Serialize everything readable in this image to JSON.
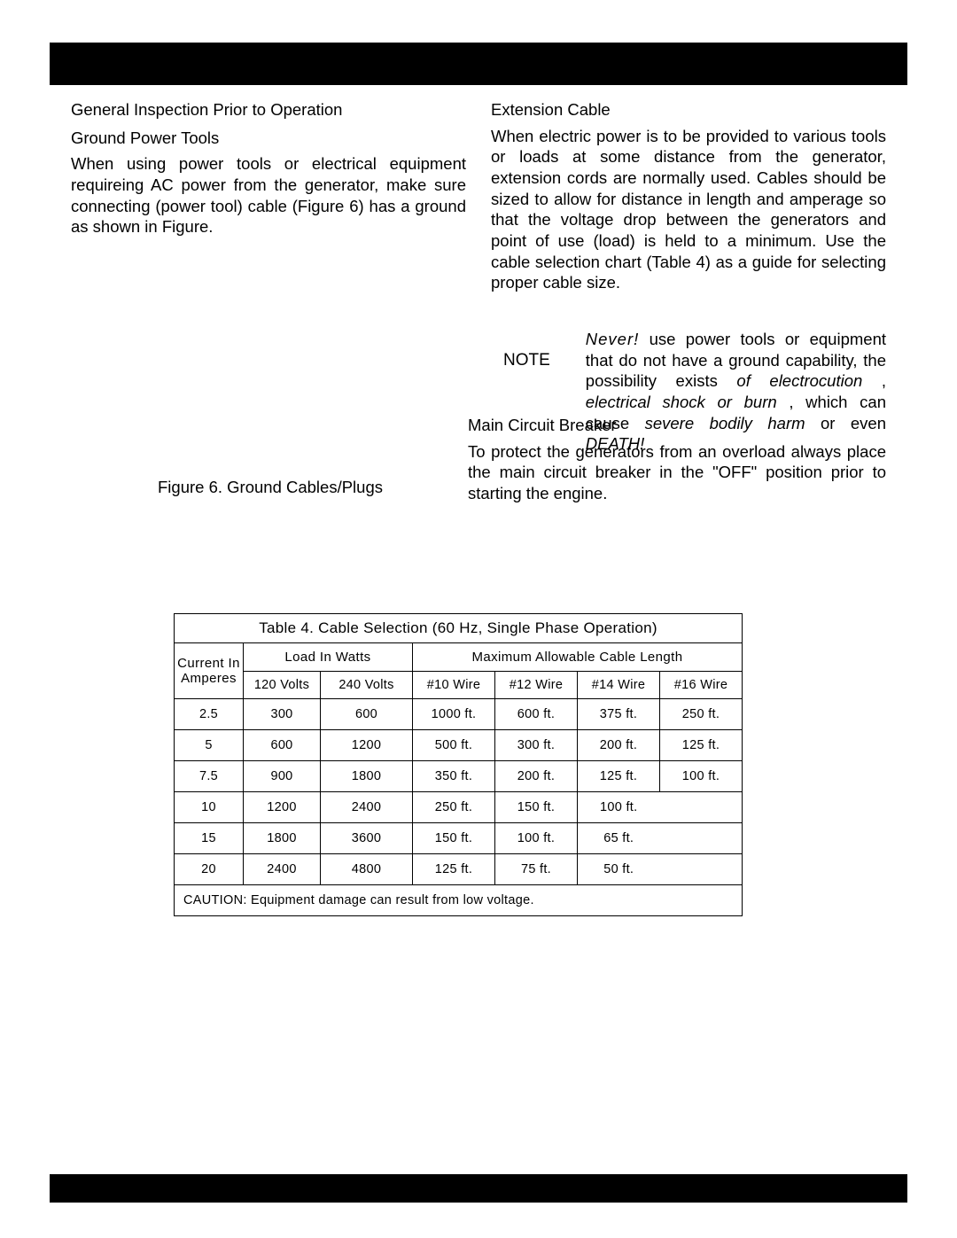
{
  "left": {
    "heading": "General Inspection Prior to Operation",
    "subheading": "Ground Power Tools",
    "body": "When using power tools or electrical equipment requireing AC power from the generator, make sure connecting (power tool) cable (Figure 6) has a ground as shown in Figure."
  },
  "figure_caption": "Figure 6. Ground Cables/Plugs",
  "right": {
    "heading": "Extension Cable",
    "body": "When electric power is to be provided to various tools or loads at some distance from the generator, extension cords are normally used. Cables should be sized to allow for distance in length and amperage so that the voltage drop between the generators and point of use (load) is held  to a minimum. Use the cable selection chart (Table 4) as a guide for selecting proper cable size."
  },
  "note": {
    "label": "NOTE",
    "never": "Never!",
    "t1": " use power tools or equipment that do not have a ground capability, the possibility exists ",
    "ital1": "of electrocution",
    "t2": " , ",
    "ital2": "electrical shock or burn",
    "t3": " , which can cause ",
    "ital3": "severe bodily harm",
    "t4": "  or even ",
    "death": "DEATH!"
  },
  "mcb": {
    "heading": "Main Circuit Breaker",
    "body": "To protect the generators from an overload always place the main circuit breaker  in the \"OFF\" position prior to starting the engine."
  },
  "table": {
    "title": "Table 4. Cable Selection (60 Hz, Single Phase Operation)",
    "hdr_current": "Current In Amperes",
    "hdr_load": "Load In Watts",
    "hdr_max": "Maximum Allowable Cable Length",
    "sub_120": "120 Volts",
    "sub_240": "240 Volts",
    "sub_w10": "#10 Wire",
    "sub_w12": "#12 Wire",
    "sub_w14": "#14 Wire",
    "sub_w16": "#16 Wire",
    "rows": [
      {
        "a": "2.5",
        "v120": "300",
        "v240": "600",
        "w10": "1000 ft.",
        "w12": "600 ft.",
        "w14": "375 ft.",
        "w16": "250 ft."
      },
      {
        "a": "5",
        "v120": "600",
        "v240": "1200",
        "w10": "500 ft.",
        "w12": "300 ft.",
        "w14": "200 ft.",
        "w16": "125 ft."
      },
      {
        "a": "7.5",
        "v120": "900",
        "v240": "1800",
        "w10": "350 ft.",
        "w12": "200 ft.",
        "w14": "125 ft.",
        "w16": "100 ft."
      },
      {
        "a": "10",
        "v120": "1200",
        "v240": "2400",
        "w10": "250 ft.",
        "w12": "150 ft.",
        "w14": "100 ft.",
        "w16": ""
      },
      {
        "a": "15",
        "v120": "1800",
        "v240": "3600",
        "w10": "150 ft.",
        "w12": "100 ft.",
        "w14": "65 ft.",
        "w16": ""
      },
      {
        "a": "20",
        "v120": "2400",
        "v240": "4800",
        "w10": "125 ft.",
        "w12": "75 ft.",
        "w14": "50 ft.",
        "w16": ""
      }
    ],
    "caution": "CAUTION: Equipment damage can result from low voltage."
  },
  "style": {
    "page_bg": "#ffffff",
    "bar_bg": "#000000",
    "text_color": "#000000",
    "body_fontsize": 18.5,
    "table_fontsize": 15,
    "border_color": "#000000"
  }
}
